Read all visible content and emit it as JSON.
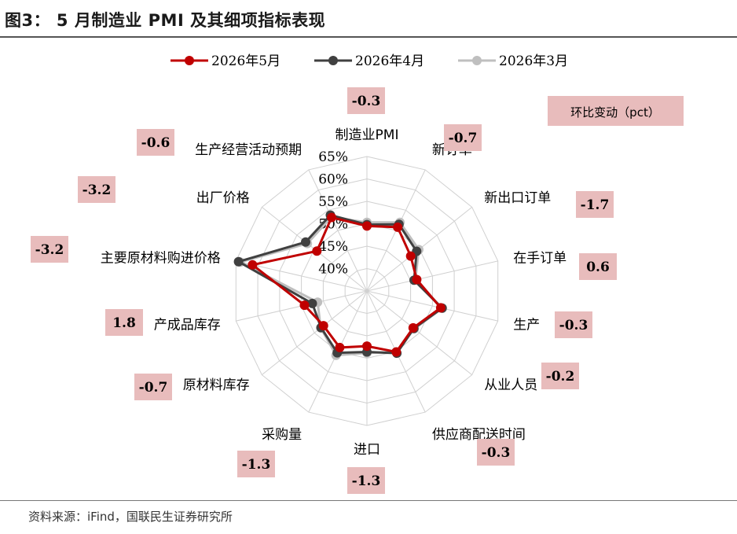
{
  "header": {
    "title": "图3：  5 月制造业 PMI 及其细项指标表现"
  },
  "footer": {
    "source": "资料来源：iFind，国联民生证券研究所"
  },
  "colors": {
    "series_may": "#c00000",
    "series_apr": "#404040",
    "series_mar": "#bfbfbf",
    "delta_box": "#e8bcbc",
    "grid": "#d0d0d0"
  },
  "note": {
    "label": "环比变动（pct）"
  },
  "chart_data": {
    "type": "radar",
    "categories": [
      "制造业PMI",
      "新订单",
      "新出口订单",
      "在手订单",
      "生产",
      "从业人员",
      "供应商配送时间",
      "进口",
      "采购量",
      "原材料库存",
      "产成品库存",
      "主要原材料购进价格",
      "出厂价格",
      "生产经营活动预期"
    ],
    "tick_labels": [
      "40%",
      "45%",
      "50%",
      "55%",
      "60%",
      "65%"
    ],
    "rlim": [
      35,
      65
    ],
    "grid": true,
    "legend_position": "top",
    "series": [
      {
        "name": "2026年5月",
        "values": [
          49.5,
          50.8,
          47.5,
          46.4,
          51.9,
          48.2,
          50.1,
          47.3,
          49.0,
          47.4,
          49.3,
          61.2,
          49.3,
          53.2
        ]
      },
      {
        "name": "2026年4月",
        "values": [
          49.8,
          51.5,
          49.2,
          45.8,
          52.2,
          48.4,
          50.4,
          48.6,
          50.3,
          48.1,
          47.5,
          64.4,
          52.5,
          53.8
        ]
      },
      {
        "name": "2026年3月",
        "values": [
          50.3,
          52.0,
          49.8,
          46.1,
          52.3,
          48.5,
          50.1,
          48.8,
          50.9,
          48.2,
          46.3,
          64.0,
          52.0,
          53.3
        ]
      }
    ],
    "deltas": [
      "-0.3",
      "-0.7",
      "-1.7",
      "0.6",
      "-0.3",
      "-0.2",
      "-0.3",
      "-1.3",
      "-1.3",
      "-0.7",
      "1.8",
      "-3.2",
      "-3.2",
      "-0.6"
    ]
  }
}
